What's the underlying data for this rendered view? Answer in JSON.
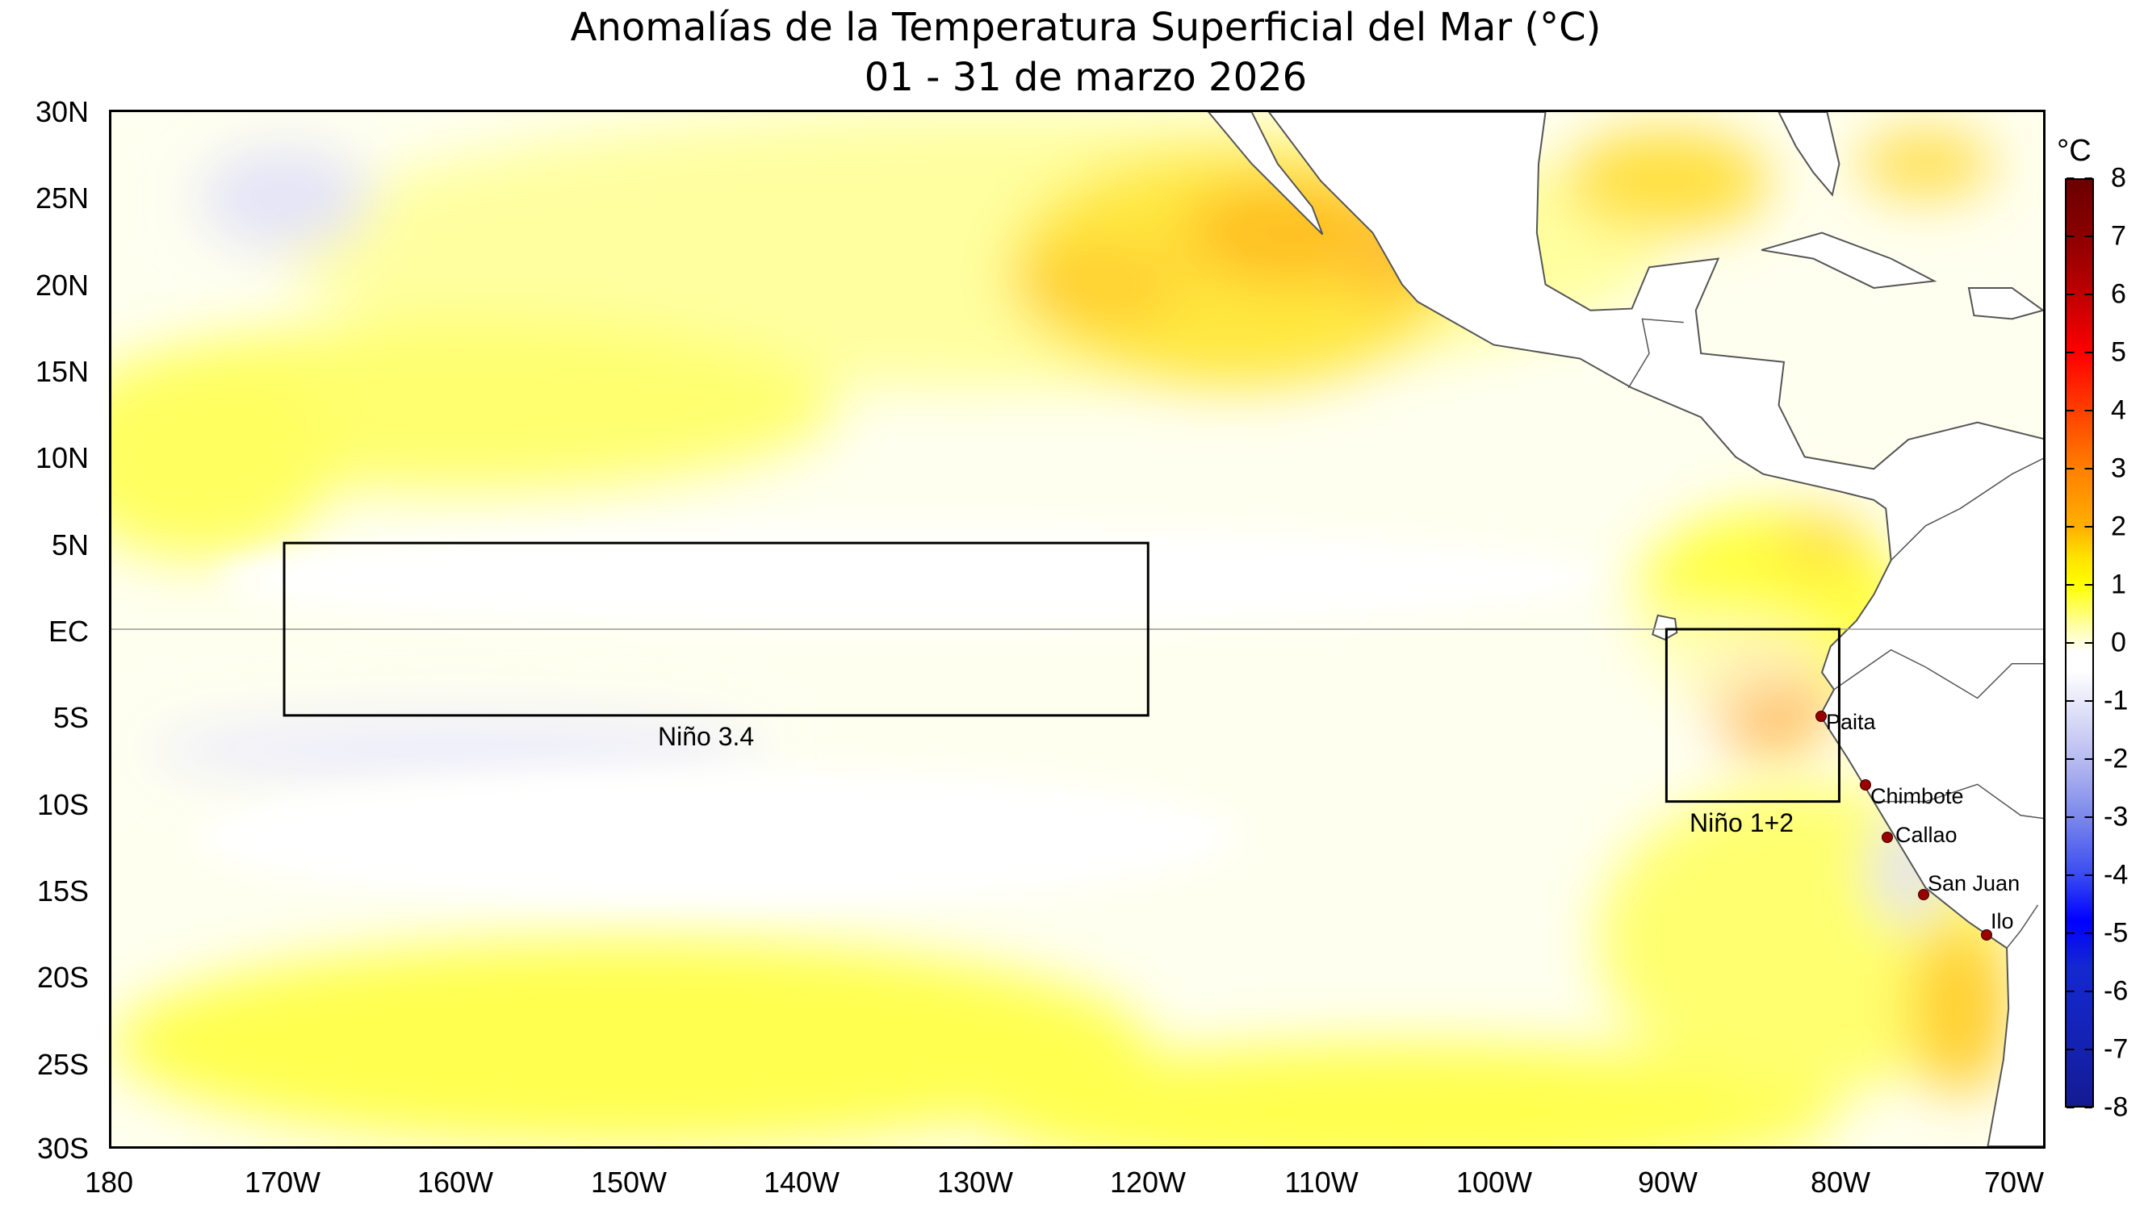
{
  "title": {
    "line1": "Anomalías de la Temperatura Superficial del Mar (°C)",
    "line2": "01 - 31 de marzo 2026"
  },
  "lat_labels": [
    "30N",
    "25N",
    "20N",
    "15N",
    "10N",
    "5N",
    "EC",
    "5S",
    "10S",
    "15S",
    "20S",
    "25S",
    "30S"
  ],
  "lon_labels": [
    "180",
    "170W",
    "160W",
    "150W",
    "140W",
    "130W",
    "120W",
    "110W",
    "100W",
    "90W",
    "80W",
    "70W"
  ],
  "regions": [
    {
      "name": "Niño 3.4"
    },
    {
      "name": "Niño 1+2"
    }
  ],
  "cities": [
    {
      "name": "Paita"
    },
    {
      "name": "Chimbote"
    },
    {
      "name": "Callao"
    },
    {
      "name": "San Juan"
    },
    {
      "name": "Ilo"
    }
  ],
  "colorbar": {
    "unit": "°C",
    "ticks": [
      "8",
      "7",
      "6",
      "5",
      "4",
      "3",
      "2",
      "1",
      "0",
      "-1",
      "-2",
      "-3",
      "-4",
      "-5",
      "-6",
      "-7",
      "-8"
    ]
  },
  "colors": {
    "warm": "#ffff00",
    "hot": "#ff9a00",
    "cool": "#c8c8f4",
    "land": "#ffffff",
    "city_marker": "#9a0000"
  }
}
